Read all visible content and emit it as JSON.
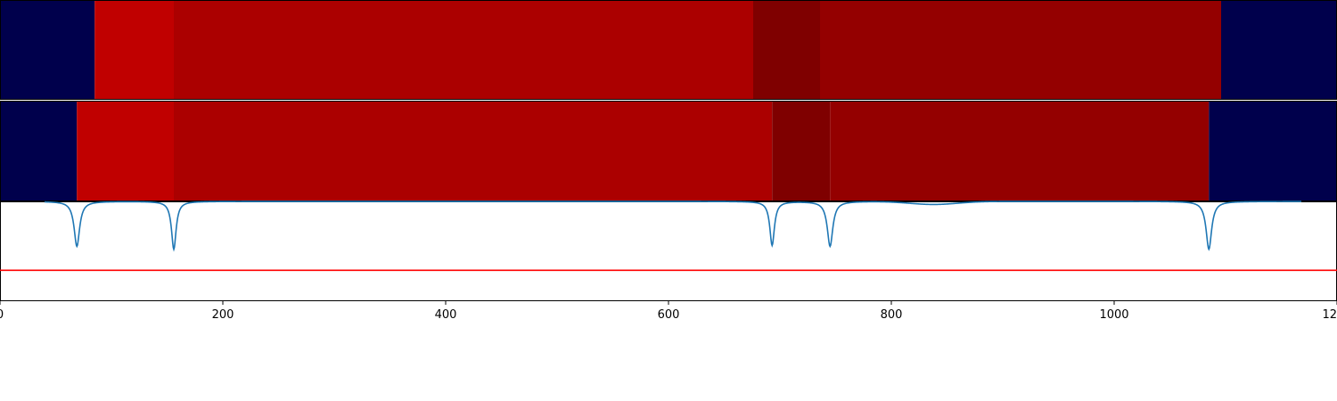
{
  "chart_data": [
    {
      "type": "heatmap",
      "name": "segmentation-track-top",
      "xlim": [
        0,
        1200
      ],
      "segments": [
        {
          "start": 0,
          "end": 85,
          "color": "#00004c"
        },
        {
          "start": 85,
          "end": 156,
          "color": "#c00000"
        },
        {
          "start": 156,
          "end": 676,
          "color": "#ab0000"
        },
        {
          "start": 676,
          "end": 736,
          "color": "#7f0000"
        },
        {
          "start": 736,
          "end": 1096,
          "color": "#940000"
        },
        {
          "start": 1096,
          "end": 1200,
          "color": "#00004c"
        }
      ]
    },
    {
      "type": "heatmap",
      "name": "segmentation-track-bottom",
      "xlim": [
        0,
        1200
      ],
      "segments": [
        {
          "start": 0,
          "end": 69,
          "color": "#00004c"
        },
        {
          "start": 69,
          "end": 156,
          "color": "#c00000"
        },
        {
          "start": 156,
          "end": 693,
          "color": "#ab0000"
        },
        {
          "start": 693,
          "end": 745,
          "color": "#7f0000"
        },
        {
          "start": 745,
          "end": 1085,
          "color": "#940000"
        },
        {
          "start": 1085,
          "end": 1200,
          "color": "#00004c"
        }
      ]
    },
    {
      "type": "line",
      "name": "boundary-signal",
      "xlim": [
        0,
        1200
      ],
      "ylim": [
        0,
        1
      ],
      "xticks": [
        "0",
        "200",
        "400",
        "600",
        "800",
        "1000",
        "1200"
      ],
      "baseline": 1.0,
      "dips": [
        {
          "center": 69,
          "value": 0.55,
          "width": 3
        },
        {
          "center": 156,
          "value": 0.52,
          "width": 2.5
        },
        {
          "center": 693,
          "value": 0.56,
          "width": 2.5
        },
        {
          "center": 745,
          "value": 0.55,
          "width": 3
        },
        {
          "center": 1085,
          "value": 0.52,
          "width": 3
        }
      ],
      "bump": {
        "center": 838,
        "value": 0.97,
        "width": 30
      },
      "threshold": 0.31,
      "series_color": "#1f77b4",
      "threshold_color": "#ff0000"
    }
  ]
}
